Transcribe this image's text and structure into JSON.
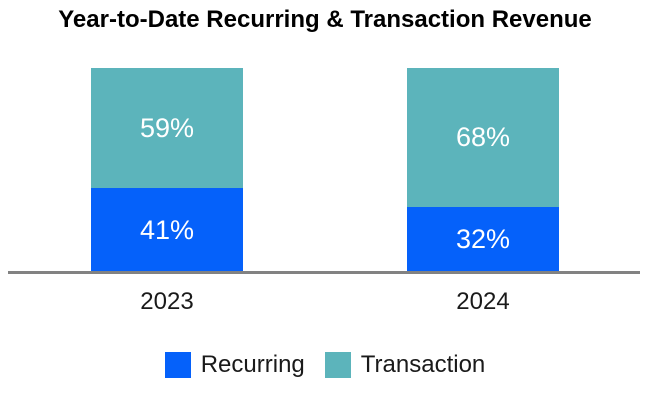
{
  "chart_data": {
    "type": "bar",
    "stacked": true,
    "title": "Year-to-Date Recurring & Transaction Revenue",
    "categories": [
      "2023",
      "2024"
    ],
    "series": [
      {
        "name": "Recurring",
        "color": "#0561fa",
        "values": [
          41,
          32
        ]
      },
      {
        "name": "Transaction",
        "color": "#5cb4bb",
        "values": [
          59,
          68
        ]
      }
    ],
    "value_label_format": "{value}%",
    "xlabel": "",
    "ylabel": "",
    "ylim": [
      0,
      100
    ],
    "grid": false,
    "y_axis_visible": false,
    "legend_position": "bottom",
    "axis_line_color": "#828282"
  },
  "colors": {
    "background": "#ffffff",
    "title_text": "#000000",
    "category_text": "#1a1a1a",
    "bar_label_text": "#ffffff"
  }
}
